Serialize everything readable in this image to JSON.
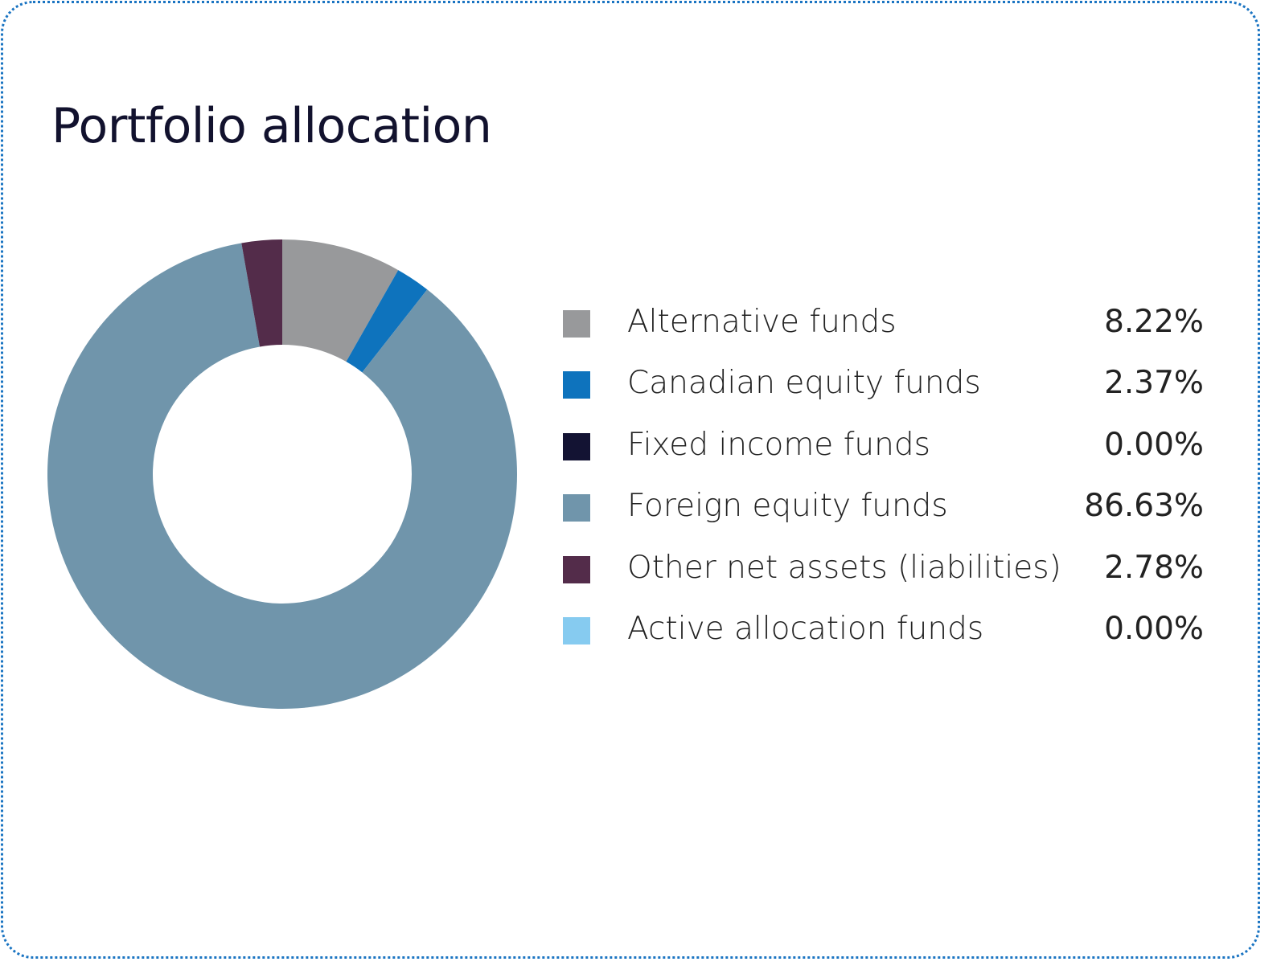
{
  "chart_data": {
    "type": "pie",
    "variant": "donut",
    "title": "Portfolio allocation",
    "start_angle": "top, clockwise",
    "legend_position": "right",
    "slices": [
      {
        "label": "Alternative funds",
        "value": 8.22,
        "display": "8.22%",
        "color": "#98999b"
      },
      {
        "label": "Canadian equity funds",
        "value": 2.37,
        "display": "2.37%",
        "color": "#0e73bd"
      },
      {
        "label": "Fixed income funds",
        "value": 0.0,
        "display": "0.00%",
        "color": "#131333"
      },
      {
        "label": "Foreign equity funds",
        "value": 86.63,
        "display": "86.63%",
        "color": "#7095ab"
      },
      {
        "label": "Other net assets (liabilities)",
        "value": 2.78,
        "display": "2.78%",
        "color": "#532c4a"
      },
      {
        "label": "Active allocation funds",
        "value": 0.0,
        "display": "0.00%",
        "color": "#86cbf0"
      }
    ]
  }
}
